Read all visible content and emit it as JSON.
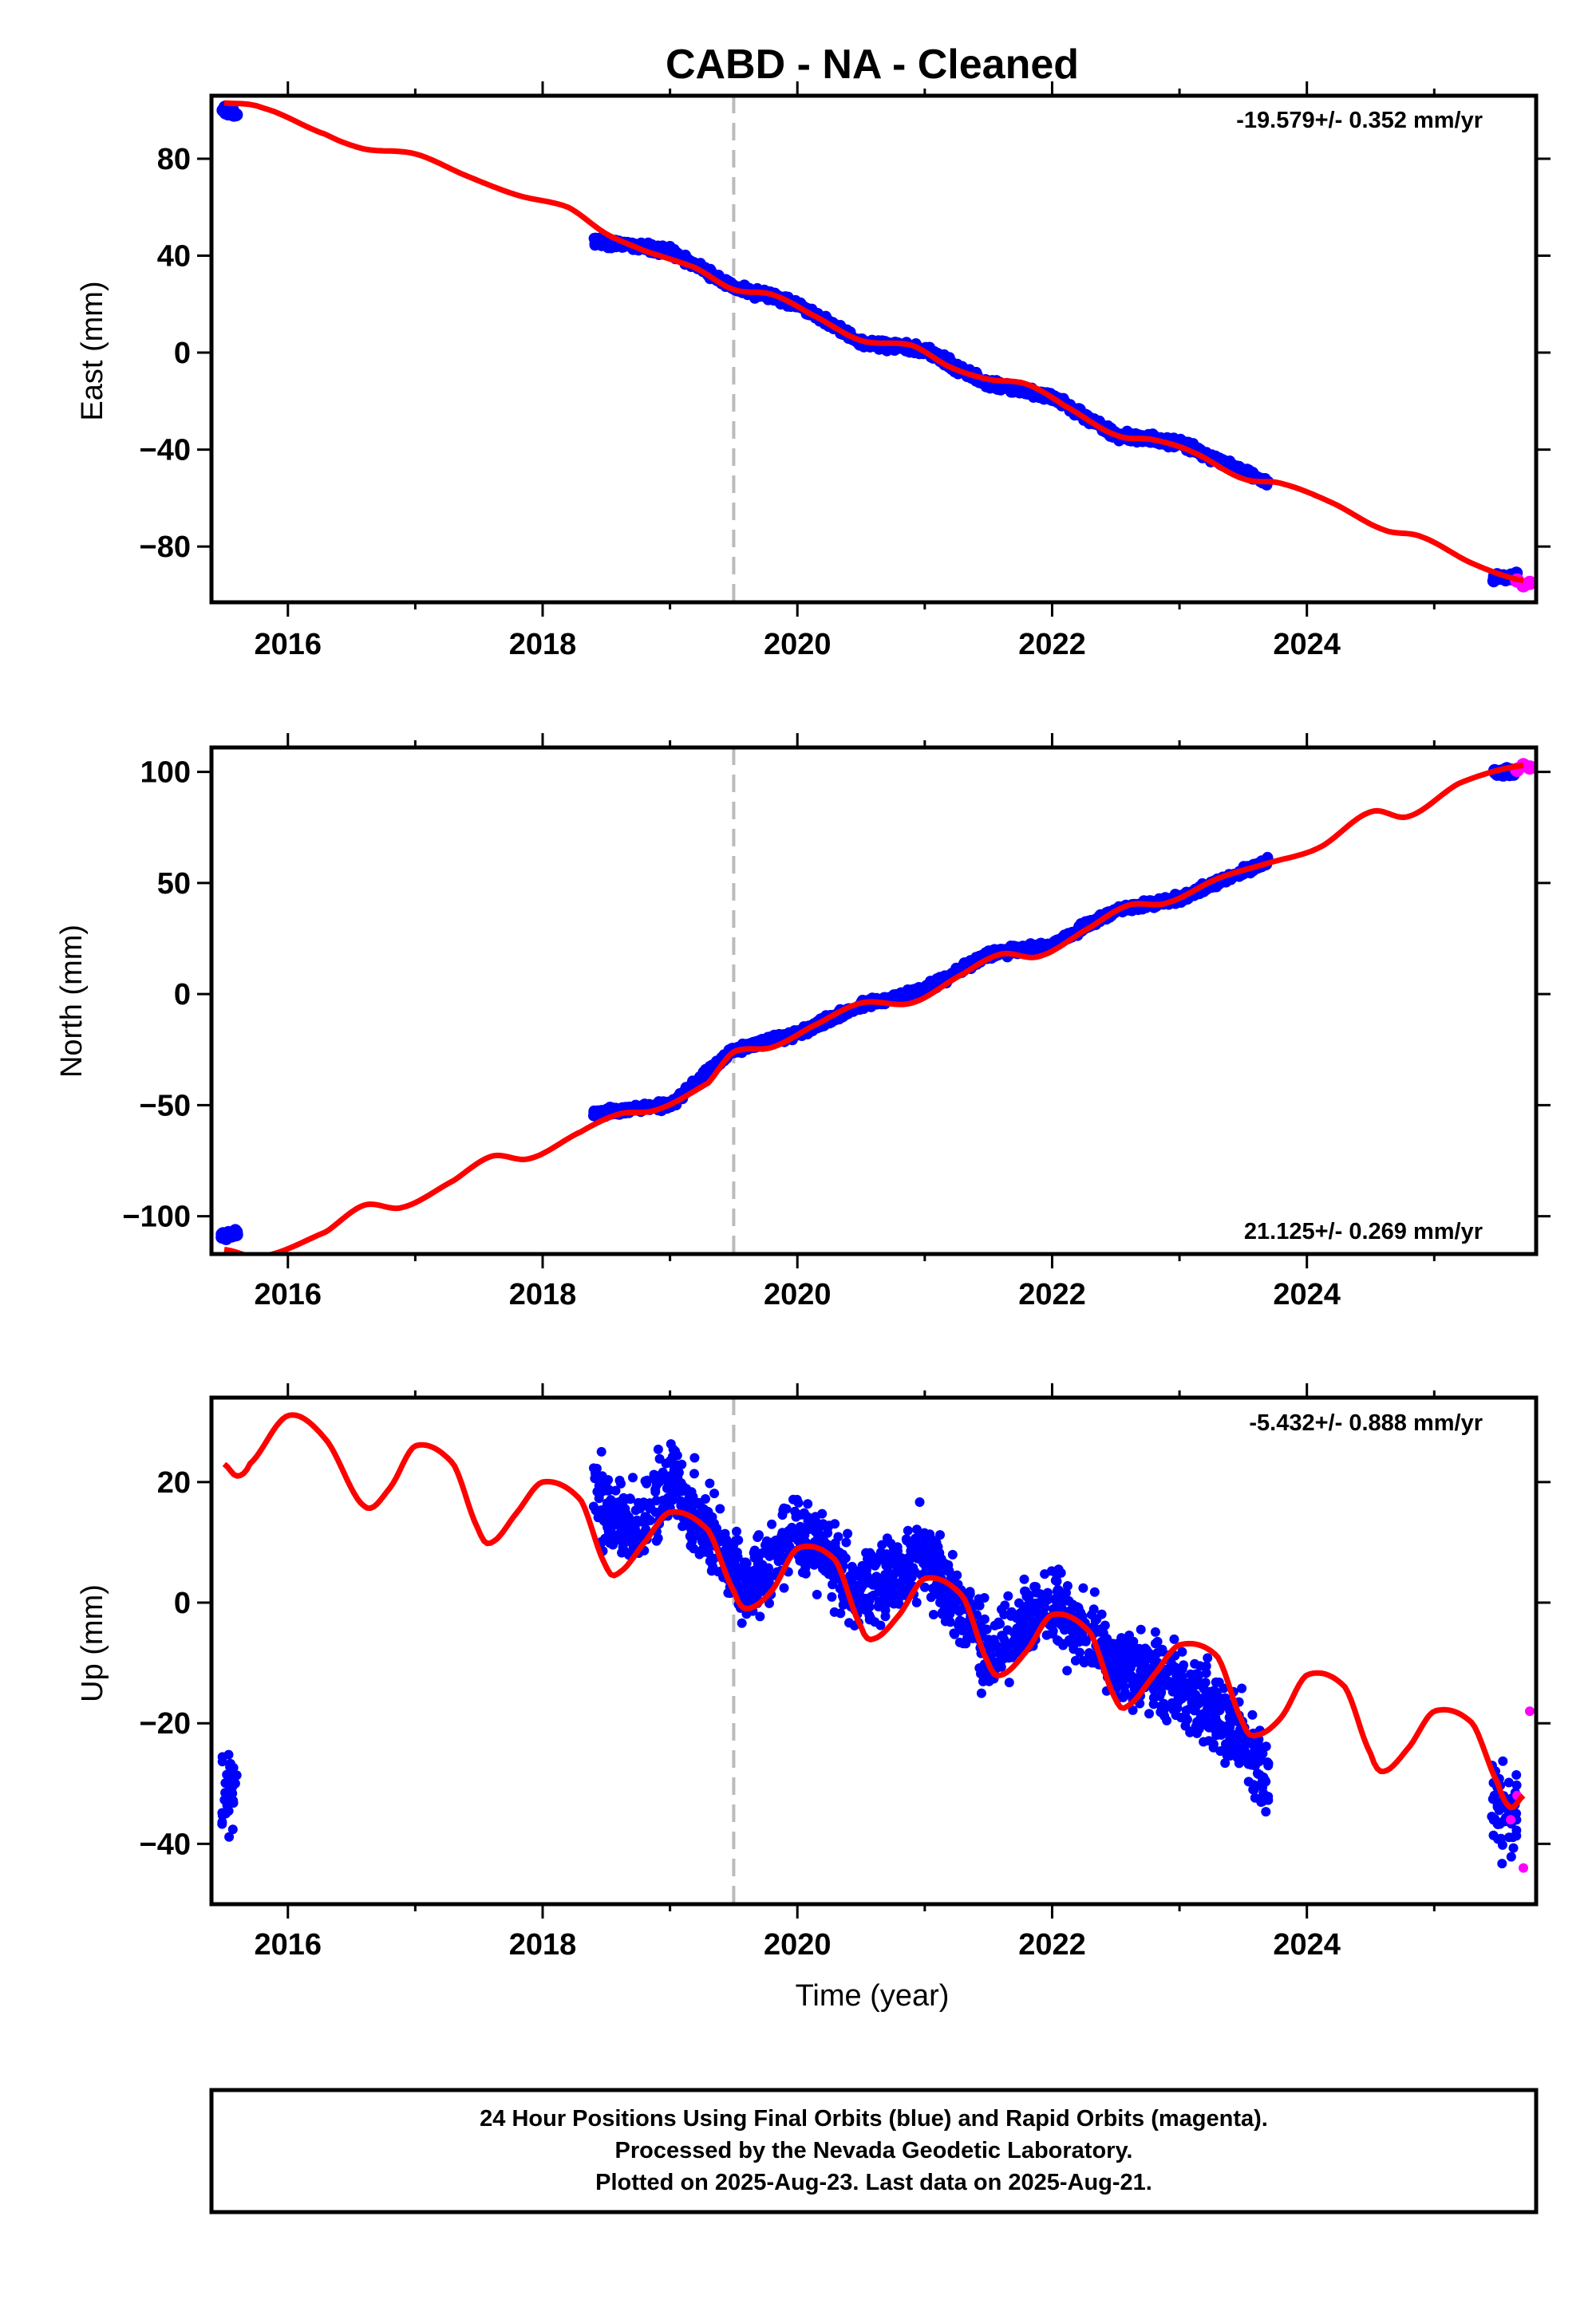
{
  "title": "CABD  - NA - Cleaned",
  "xlabel": "Time (year)",
  "x_ticks": [
    "2016",
    "2018",
    "2020",
    "2022",
    "2024"
  ],
  "footer": [
    "24 Hour Positions Using Final Orbits (blue) and Rapid Orbits (magenta).",
    "Processed by the Nevada Geodetic Laboratory.",
    "Plotted on 2025-Aug-23. Last data on 2025-Aug-21."
  ],
  "colors": {
    "final": "#0000ff",
    "rapid": "#ff00ff",
    "model": "#ff0000",
    "event_line": "#bbbbbb"
  },
  "chart_data": [
    {
      "type": "scatter",
      "ylabel": "East (mm)",
      "rate_label": "-19.579+/- 0.352 mm/yr",
      "xlim": [
        2015.4,
        2025.8
      ],
      "ylim": [
        -103,
        106
      ],
      "y_ticks": [
        "−80",
        "−40",
        "0",
        "40",
        "80"
      ],
      "y_tick_values": [
        -80,
        -40,
        0,
        40,
        80
      ],
      "event_line_x": 2019.5,
      "series": [
        {
          "x": [
            2015.5,
            2018.4,
            2019.0,
            2019.5,
            2020.0,
            2020.5,
            2021.0,
            2021.5,
            2022.0,
            2022.5,
            2023.0,
            2023.7,
            2025.5
          ],
          "values": [
            100,
            46,
            42,
            27,
            20,
            4,
            1,
            -13,
            -18,
            -34,
            -37,
            -54,
            -93
          ]
        },
        {
          "x": [
            2025.65,
            2025.7,
            2025.75
          ],
          "values": [
            -94,
            -96,
            -95
          ]
        },
        {
          "x": [
            2015.5,
            2015.8,
            2016.3,
            2016.6,
            2017.0,
            2017.4,
            2017.8,
            2018.2,
            2018.5,
            2018.8,
            2019.2,
            2019.5,
            2019.8,
            2020.1,
            2020.5,
            2020.9,
            2021.2,
            2021.5,
            2021.8,
            2022.1,
            2022.5,
            2022.8,
            2023.1,
            2023.5,
            2023.8,
            2024.2,
            2024.6,
            2024.9,
            2025.3,
            2025.7
          ],
          "values": [
            103,
            101,
            90,
            84,
            82,
            73,
            65,
            60,
            49,
            42,
            35,
            26,
            24,
            16,
            5,
            3,
            -6,
            -11,
            -13,
            -22,
            -34,
            -36,
            -41,
            -52,
            -54,
            -62,
            -73,
            -76,
            -87,
            -94
          ]
        }
      ]
    },
    {
      "type": "scatter",
      "ylabel": "North (mm)",
      "rate_label": "21.125+/- 0.269 mm/yr",
      "xlim": [
        2015.4,
        2025.8
      ],
      "ylim": [
        -117,
        111
      ],
      "y_ticks": [
        "−100",
        "−50",
        "0",
        "50",
        "100"
      ],
      "y_tick_values": [
        -100,
        -50,
        0,
        50,
        100
      ],
      "event_line_x": 2019.5,
      "series": [
        {
          "x": [
            2015.5,
            2018.4,
            2019.0,
            2019.5,
            2020.0,
            2020.5,
            2021.0,
            2021.5,
            2022.0,
            2022.5,
            2023.0,
            2023.7,
            2025.5
          ],
          "values": [
            -109,
            -54,
            -50,
            -25,
            -18,
            -5,
            2,
            18,
            22,
            38,
            43,
            60,
            100
          ]
        },
        {
          "x": [
            2025.65,
            2025.7,
            2025.75
          ],
          "values": [
            101,
            103,
            102
          ]
        },
        {
          "x": [
            2015.5,
            2015.8,
            2016.3,
            2016.6,
            2016.9,
            2017.3,
            2017.6,
            2017.9,
            2018.3,
            2018.6,
            2018.9,
            2019.3,
            2019.5,
            2019.8,
            2020.1,
            2020.5,
            2020.9,
            2021.3,
            2021.6,
            2021.9,
            2022.3,
            2022.6,
            2022.9,
            2023.3,
            2023.7,
            2024.1,
            2024.5,
            2024.8,
            2025.2,
            2025.7
          ],
          "values": [
            -115,
            -118,
            -107,
            -95,
            -96,
            -84,
            -73,
            -74,
            -62,
            -54,
            -52,
            -40,
            -26,
            -24,
            -15,
            -4,
            -4,
            9,
            18,
            17,
            30,
            40,
            41,
            52,
            59,
            66,
            82,
            80,
            95,
            103
          ]
        }
      ]
    },
    {
      "type": "scatter",
      "ylabel": "Up (mm)",
      "rate_label": "-5.432+/- 0.888 mm/yr",
      "xlim": [
        2015.4,
        2025.8
      ],
      "ylim": [
        -50,
        34
      ],
      "y_ticks": [
        "−40",
        "−20",
        "0",
        "20"
      ],
      "y_tick_values": [
        -40,
        -20,
        0,
        20
      ],
      "event_line_x": 2019.5,
      "series": [
        {
          "x": [
            2015.5,
            2015.6,
            2018.4,
            2018.7,
            2019.0,
            2019.3,
            2019.6,
            2020.0,
            2020.5,
            2021.0,
            2021.5,
            2022.0,
            2022.5,
            2023.0,
            2023.5,
            2023.7,
            2025.5
          ],
          "values": [
            -33,
            -30,
            18,
            12,
            20,
            12,
            2,
            12,
            2,
            8,
            -8,
            0,
            -10,
            -14,
            -22,
            -30,
            -34
          ]
        },
        {
          "x": [
            2025.6,
            2025.65,
            2025.7,
            2025.75
          ],
          "values": [
            -36,
            -32,
            -44,
            -18
          ]
        },
        {
          "x": [
            2015.5,
            2015.6,
            2015.7,
            2016.0,
            2016.3,
            2016.6,
            2016.8,
            2017.0,
            2017.3,
            2017.5,
            2017.6,
            2017.8,
            2018.0,
            2018.3,
            2018.5,
            2018.6,
            2018.8,
            2019.0,
            2019.3,
            2019.5,
            2019.6,
            2019.8,
            2020.0,
            2020.3,
            2020.5,
            2020.6,
            2020.8,
            2021.0,
            2021.3,
            2021.5,
            2021.6,
            2021.8,
            2022.0,
            2022.3,
            2022.5,
            2022.6,
            2022.8,
            2023.0,
            2023.3,
            2023.5,
            2023.6,
            2023.8,
            2024.0,
            2024.3,
            2024.5,
            2024.6,
            2024.8,
            2025.0,
            2025.3,
            2025.5,
            2025.6,
            2025.7
          ],
          "values": [
            23,
            21,
            23,
            31,
            27,
            16,
            19,
            26,
            23,
            12,
            10,
            15,
            20,
            17,
            6,
            5,
            10,
            15,
            12,
            2,
            -1,
            2,
            9,
            7,
            -4,
            -6,
            -2,
            4,
            1,
            -10,
            -12,
            -8,
            -2,
            -5,
            -16,
            -17,
            -12,
            -7,
            -9,
            -20,
            -22,
            -19,
            -12,
            -14,
            -25,
            -28,
            -24,
            -18,
            -20,
            -30,
            -34,
            -32
          ]
        }
      ]
    }
  ]
}
